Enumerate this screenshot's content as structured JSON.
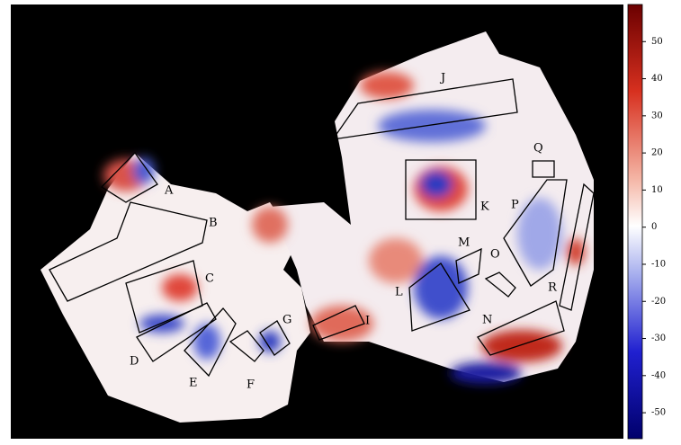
{
  "regions": {
    "labels": [
      "A",
      "B",
      "C",
      "D",
      "E",
      "F",
      "G",
      "I",
      "J",
      "K",
      "L",
      "M",
      "N",
      "O",
      "P",
      "Q",
      "R"
    ]
  },
  "colorbar": {
    "clim": [
      -57,
      60
    ],
    "ticks": [
      50,
      40,
      30,
      20,
      10,
      0,
      -10,
      -20,
      -30,
      -40,
      -50
    ]
  }
}
